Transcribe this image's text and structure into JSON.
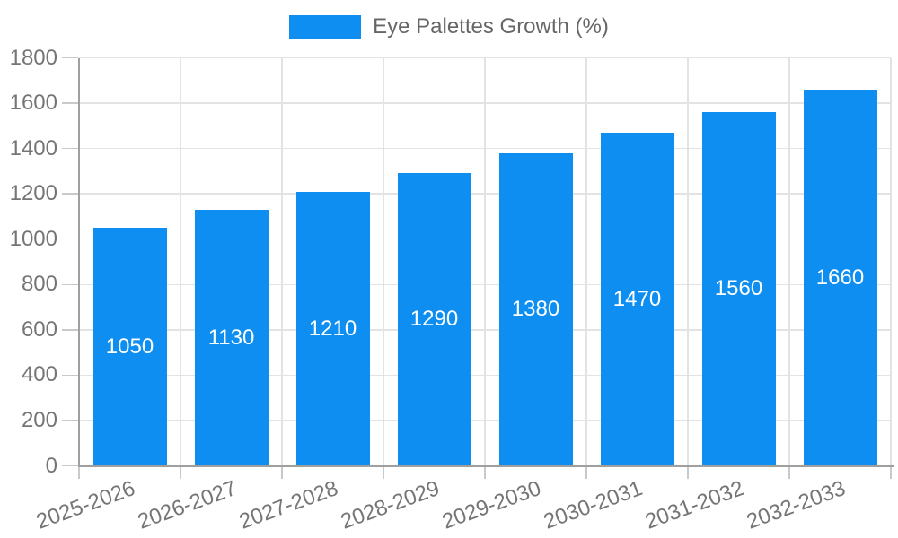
{
  "legend": {
    "label": "Eye Palettes Growth (%)"
  },
  "colors": {
    "bar": "#0d8ef0",
    "grid": "#e3e3e3",
    "axis": "#9f9f9f",
    "tick": "#c9c9c9",
    "tick_label": "#757575",
    "legend_text": "#666666",
    "value_label": "#ffffff",
    "background": "#ffffff"
  },
  "chart_data": {
    "type": "bar",
    "title": "",
    "categories": [
      "2025-2026",
      "2026-2027",
      "2027-2028",
      "2028-2029",
      "2029-2030",
      "2030-2031",
      "2031-2032",
      "2032-2033"
    ],
    "series": [
      {
        "name": "Eye Palettes Growth (%)",
        "values": [
          1050,
          1130,
          1210,
          1290,
          1380,
          1470,
          1560,
          1660
        ]
      }
    ],
    "ylim": [
      0,
      1800
    ],
    "ytick_step": 200,
    "ytick_labels": [
      "0",
      "200",
      "400",
      "600",
      "800",
      "1000",
      "1200",
      "1400",
      "1600",
      "1800"
    ],
    "xlabel": "",
    "ylabel": "",
    "grid": true,
    "legend_position": "top-center",
    "value_labels": "inside-center",
    "x_label_rotation_deg": -20
  }
}
